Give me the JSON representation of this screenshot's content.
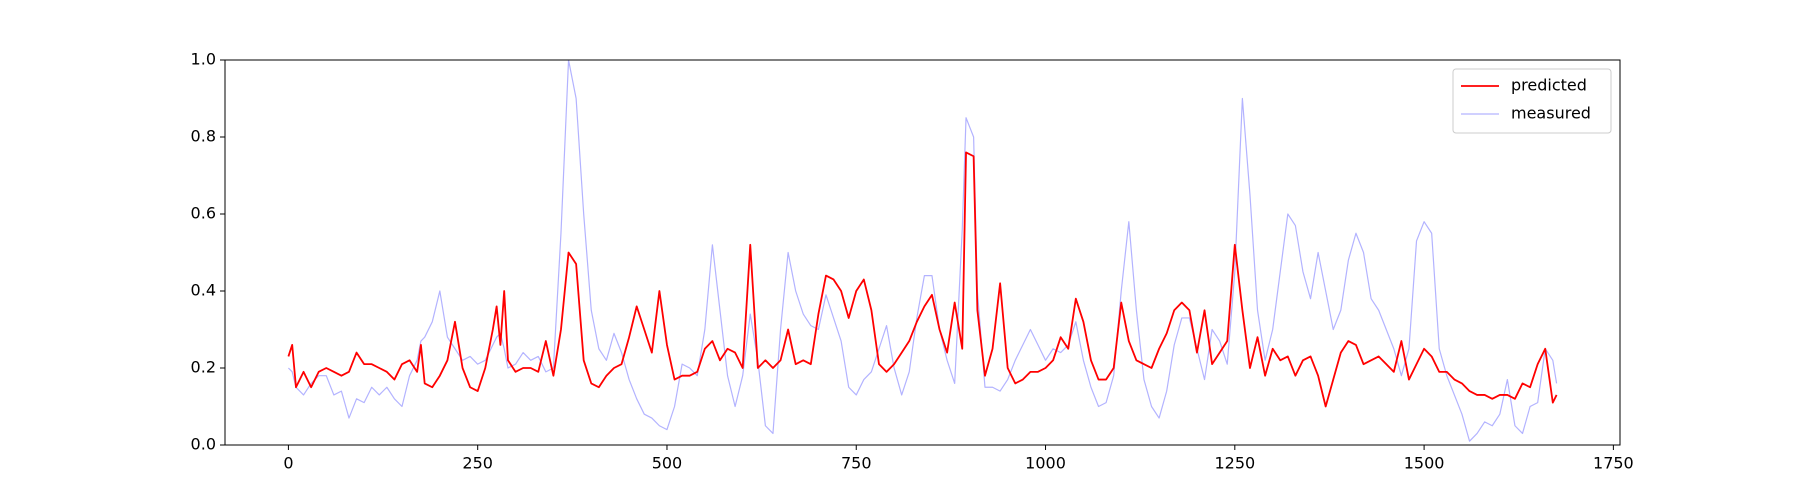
{
  "chart_data": {
    "type": "line",
    "x": [
      0,
      5,
      10,
      20,
      30,
      40,
      50,
      60,
      70,
      80,
      90,
      100,
      110,
      120,
      130,
      140,
      150,
      160,
      170,
      175,
      180,
      190,
      200,
      210,
      220,
      230,
      240,
      250,
      260,
      270,
      275,
      280,
      285,
      290,
      300,
      310,
      320,
      330,
      340,
      350,
      360,
      370,
      380,
      390,
      400,
      410,
      420,
      430,
      440,
      450,
      460,
      470,
      480,
      490,
      500,
      510,
      520,
      530,
      540,
      550,
      560,
      570,
      580,
      590,
      600,
      610,
      620,
      630,
      640,
      650,
      660,
      670,
      680,
      690,
      700,
      710,
      720,
      730,
      740,
      750,
      760,
      770,
      780,
      790,
      800,
      810,
      820,
      830,
      840,
      850,
      860,
      870,
      880,
      890,
      895,
      905,
      910,
      920,
      930,
      940,
      950,
      960,
      970,
      980,
      990,
      1000,
      1010,
      1020,
      1030,
      1040,
      1050,
      1060,
      1070,
      1080,
      1090,
      1100,
      1110,
      1120,
      1130,
      1140,
      1150,
      1160,
      1170,
      1180,
      1190,
      1200,
      1210,
      1220,
      1230,
      1240,
      1250,
      1260,
      1270,
      1280,
      1290,
      1300,
      1310,
      1320,
      1330,
      1340,
      1350,
      1360,
      1370,
      1380,
      1390,
      1400,
      1410,
      1420,
      1430,
      1440,
      1450,
      1460,
      1470,
      1480,
      1490,
      1500,
      1510,
      1520,
      1530,
      1540,
      1550,
      1560,
      1570,
      1580,
      1590,
      1600,
      1610,
      1620,
      1630,
      1640,
      1650,
      1660,
      1670,
      1675
    ],
    "series": [
      {
        "name": "predicted",
        "color": "#ff0000",
        "values": [
          0.23,
          0.26,
          0.15,
          0.19,
          0.15,
          0.19,
          0.2,
          0.19,
          0.18,
          0.19,
          0.24,
          0.21,
          0.21,
          0.2,
          0.19,
          0.17,
          0.21,
          0.22,
          0.19,
          0.26,
          0.16,
          0.15,
          0.18,
          0.22,
          0.32,
          0.2,
          0.15,
          0.14,
          0.2,
          0.3,
          0.36,
          0.26,
          0.4,
          0.22,
          0.19,
          0.2,
          0.2,
          0.19,
          0.27,
          0.18,
          0.3,
          0.5,
          0.47,
          0.22,
          0.16,
          0.15,
          0.18,
          0.2,
          0.21,
          0.28,
          0.36,
          0.3,
          0.24,
          0.4,
          0.26,
          0.17,
          0.18,
          0.18,
          0.19,
          0.25,
          0.27,
          0.22,
          0.25,
          0.24,
          0.2,
          0.52,
          0.2,
          0.22,
          0.2,
          0.22,
          0.3,
          0.21,
          0.22,
          0.21,
          0.34,
          0.44,
          0.43,
          0.4,
          0.33,
          0.4,
          0.43,
          0.35,
          0.21,
          0.19,
          0.21,
          0.24,
          0.27,
          0.32,
          0.36,
          0.39,
          0.3,
          0.24,
          0.37,
          0.25,
          0.76,
          0.75,
          0.35,
          0.18,
          0.25,
          0.42,
          0.2,
          0.16,
          0.17,
          0.19,
          0.19,
          0.2,
          0.22,
          0.28,
          0.25,
          0.38,
          0.32,
          0.22,
          0.17,
          0.17,
          0.2,
          0.37,
          0.27,
          0.22,
          0.21,
          0.2,
          0.25,
          0.29,
          0.35,
          0.37,
          0.35,
          0.24,
          0.35,
          0.21,
          0.24,
          0.27,
          0.52,
          0.35,
          0.2,
          0.28,
          0.18,
          0.25,
          0.22,
          0.23,
          0.18,
          0.22,
          0.23,
          0.18,
          0.1,
          0.17,
          0.24,
          0.27,
          0.26,
          0.21,
          0.22,
          0.23,
          0.21,
          0.19,
          0.27,
          0.17,
          0.21,
          0.25,
          0.23,
          0.19,
          0.19,
          0.17,
          0.16,
          0.14,
          0.13,
          0.13,
          0.12,
          0.13,
          0.13,
          0.12,
          0.16,
          0.15,
          0.21,
          0.25,
          0.11,
          0.13
        ]
      },
      {
        "name": "measured",
        "color": "#b3b3ff",
        "values": [
          0.2,
          0.19,
          0.15,
          0.13,
          0.16,
          0.18,
          0.18,
          0.13,
          0.14,
          0.07,
          0.12,
          0.11,
          0.15,
          0.13,
          0.15,
          0.12,
          0.1,
          0.18,
          0.22,
          0.27,
          0.28,
          0.32,
          0.4,
          0.28,
          0.25,
          0.22,
          0.23,
          0.21,
          0.22,
          0.26,
          0.28,
          0.29,
          0.25,
          0.2,
          0.21,
          0.24,
          0.22,
          0.23,
          0.19,
          0.2,
          0.55,
          1.0,
          0.9,
          0.6,
          0.35,
          0.25,
          0.22,
          0.29,
          0.24,
          0.17,
          0.12,
          0.08,
          0.07,
          0.05,
          0.04,
          0.1,
          0.21,
          0.2,
          0.18,
          0.3,
          0.52,
          0.35,
          0.18,
          0.1,
          0.18,
          0.34,
          0.22,
          0.05,
          0.03,
          0.3,
          0.5,
          0.4,
          0.34,
          0.31,
          0.3,
          0.39,
          0.33,
          0.27,
          0.15,
          0.13,
          0.17,
          0.19,
          0.25,
          0.31,
          0.2,
          0.13,
          0.19,
          0.33,
          0.44,
          0.44,
          0.3,
          0.22,
          0.16,
          0.56,
          0.85,
          0.8,
          0.4,
          0.15,
          0.15,
          0.14,
          0.17,
          0.22,
          0.26,
          0.3,
          0.26,
          0.22,
          0.25,
          0.24,
          0.26,
          0.32,
          0.22,
          0.15,
          0.1,
          0.11,
          0.18,
          0.4,
          0.58,
          0.35,
          0.17,
          0.1,
          0.07,
          0.14,
          0.26,
          0.33,
          0.33,
          0.25,
          0.17,
          0.3,
          0.27,
          0.21,
          0.45,
          0.9,
          0.65,
          0.35,
          0.22,
          0.3,
          0.45,
          0.6,
          0.57,
          0.45,
          0.38,
          0.5,
          0.4,
          0.3,
          0.35,
          0.48,
          0.55,
          0.5,
          0.38,
          0.35,
          0.3,
          0.25,
          0.18,
          0.25,
          0.53,
          0.58,
          0.55,
          0.25,
          0.18,
          0.13,
          0.08,
          0.01,
          0.03,
          0.06,
          0.05,
          0.08,
          0.17,
          0.05,
          0.03,
          0.1,
          0.11,
          0.25,
          0.22,
          0.16
        ]
      }
    ],
    "xlim": [
      -83.75,
      1758.75
    ],
    "ylim": [
      0,
      1
    ],
    "xticks": [
      0,
      250,
      500,
      750,
      1000,
      1250,
      1500,
      1750
    ],
    "yticks": [
      {
        "value": 0,
        "label": "0.0"
      },
      {
        "value": 0.2,
        "label": "0.2"
      },
      {
        "value": 0.4,
        "label": "0.4"
      },
      {
        "value": 0.6,
        "label": "0.6"
      },
      {
        "value": 0.8,
        "label": "0.8"
      },
      {
        "value": 1,
        "label": "1.0"
      }
    ],
    "legend": "upper right",
    "grid": false
  }
}
